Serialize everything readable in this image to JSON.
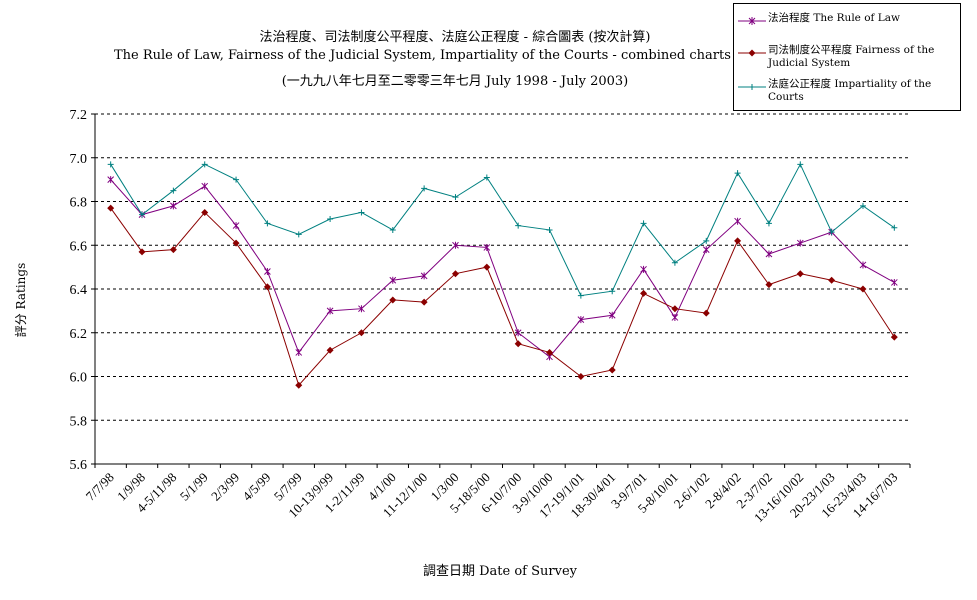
{
  "titles": {
    "line1": "法治程度、司法制度公平程度、法庭公正程度 - 綜合圖表 (按次計算)",
    "line2": "The Rule of Law, Fairness of the Judicial System, Impartiality of the Courts - combined charts (per poll)",
    "line3": "(一九九八年七月至二零零三年七月 July 1998 - July 2003)"
  },
  "legend": {
    "items": [
      {
        "label": "法治程度 The Rule of Law"
      },
      {
        "label": "司法制度公平程度 Fairness of the Judicial System"
      },
      {
        "label": "法庭公正程度 Impartiality of the Courts"
      }
    ]
  },
  "axes": {
    "ylabel": "評分 Ratings",
    "xlabel": "調查日期 Date of Survey"
  },
  "chart_data": {
    "type": "line",
    "title": "法治程度、司法制度公平程度、法庭公正程度 - 綜合圖表 (按次計算)",
    "xlabel": "調查日期 Date of Survey",
    "ylabel": "評分 Ratings",
    "ylim": [
      5.6,
      7.2
    ],
    "yticks": [
      "7.2",
      "7.0",
      "6.8",
      "6.6",
      "6.4",
      "6.2",
      "6.0",
      "5.8",
      "5.6"
    ],
    "ytick_values": [
      7.2,
      7.0,
      6.8,
      6.6,
      6.4,
      6.2,
      6.0,
      5.8,
      5.6
    ],
    "grid": "horizontal dashed",
    "legend_position": "top-right",
    "categories": [
      "7/7/98",
      "1/9/98",
      "4-5/11/98",
      "5/1/99",
      "2/3/99",
      "4/5/99",
      "5/7/99",
      "10-13/9/99",
      "1-2/11/99",
      "4/1/00",
      "11-12/1/00",
      "1/3/00",
      "5-18/5/00",
      "6-10/7/00",
      "3-9/10/00",
      "17-19/1/01",
      "18-30/4/01",
      "3-9/7/01",
      "5-8/10/01",
      "2-6/1/02",
      "2-8/4/02",
      "2-3/7/02",
      "13-16/10/02",
      "20-23/1/03",
      "16-23/4/03",
      "14-16/7/03"
    ],
    "series": [
      {
        "name": "法治程度 The Rule of Law",
        "color": "#800080",
        "marker": "asterisk",
        "values": [
          6.9,
          6.74,
          6.78,
          6.87,
          6.69,
          6.48,
          6.11,
          6.3,
          6.31,
          6.44,
          6.46,
          6.6,
          6.59,
          6.2,
          6.09,
          6.26,
          6.28,
          6.49,
          6.27,
          6.58,
          6.71,
          6.56,
          6.61,
          6.66,
          6.51,
          6.43
        ]
      },
      {
        "name": "司法制度公平程度 Fairness of the Judicial System",
        "color": "#8b0000",
        "marker": "diamond",
        "values": [
          6.77,
          6.57,
          6.58,
          6.75,
          6.61,
          6.41,
          5.96,
          6.12,
          6.2,
          6.35,
          6.34,
          6.47,
          6.5,
          6.15,
          6.11,
          6.0,
          6.03,
          6.38,
          6.31,
          6.29,
          6.62,
          6.42,
          6.47,
          6.44,
          6.4,
          6.18
        ]
      },
      {
        "name": "法庭公正程度 Impartiality of the Courts",
        "color": "#008080",
        "marker": "plus",
        "values": [
          6.97,
          6.74,
          6.85,
          6.97,
          6.9,
          6.7,
          6.65,
          6.72,
          6.75,
          6.67,
          6.86,
          6.82,
          6.91,
          6.69,
          6.67,
          6.37,
          6.39,
          6.7,
          6.52,
          6.62,
          6.93,
          6.7,
          6.97,
          6.66,
          6.78,
          6.68
        ]
      }
    ]
  }
}
